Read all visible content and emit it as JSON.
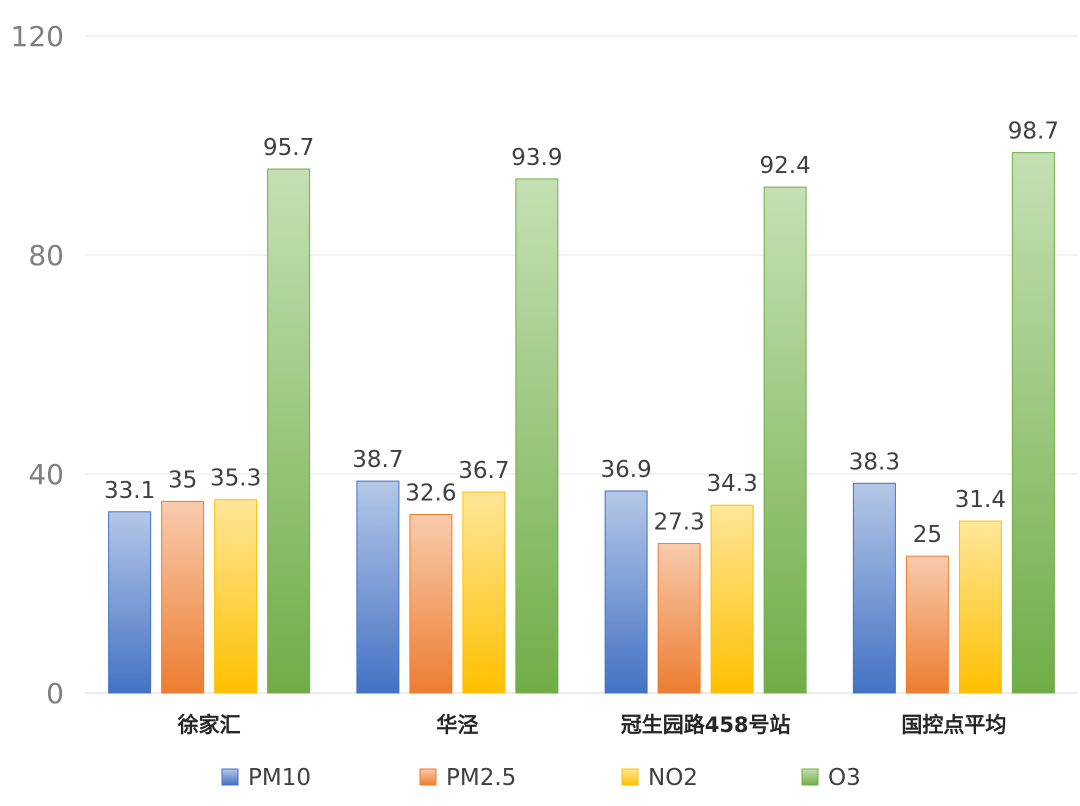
{
  "chart_data": {
    "type": "bar",
    "categories": [
      "徐家汇",
      "华泾",
      "冠生园路458号站",
      "国控点平均"
    ],
    "series": [
      {
        "name": "PM10",
        "values": [
          33.1,
          38.7,
          36.9,
          38.3
        ],
        "color_top": "#b4c7e7",
        "color_bottom": "#4472c4"
      },
      {
        "name": "PM2.5",
        "values": [
          35,
          32.6,
          27.3,
          25
        ],
        "color_top": "#f8cbad",
        "color_bottom": "#ed7d31"
      },
      {
        "name": "NO2",
        "values": [
          35.3,
          36.7,
          34.3,
          31.4
        ],
        "color_top": "#ffe699",
        "color_bottom": "#ffc000"
      },
      {
        "name": "O3",
        "values": [
          95.7,
          93.9,
          92.4,
          98.7
        ],
        "color_top": "#c5e0b4",
        "color_bottom": "#70ad47"
      }
    ],
    "ylim": [
      0,
      120
    ],
    "yticks": [
      0,
      40,
      80,
      120
    ],
    "grid": true,
    "legend_position": "bottom",
    "data_labels": true,
    "title": "",
    "xlabel": "",
    "ylabel": ""
  }
}
